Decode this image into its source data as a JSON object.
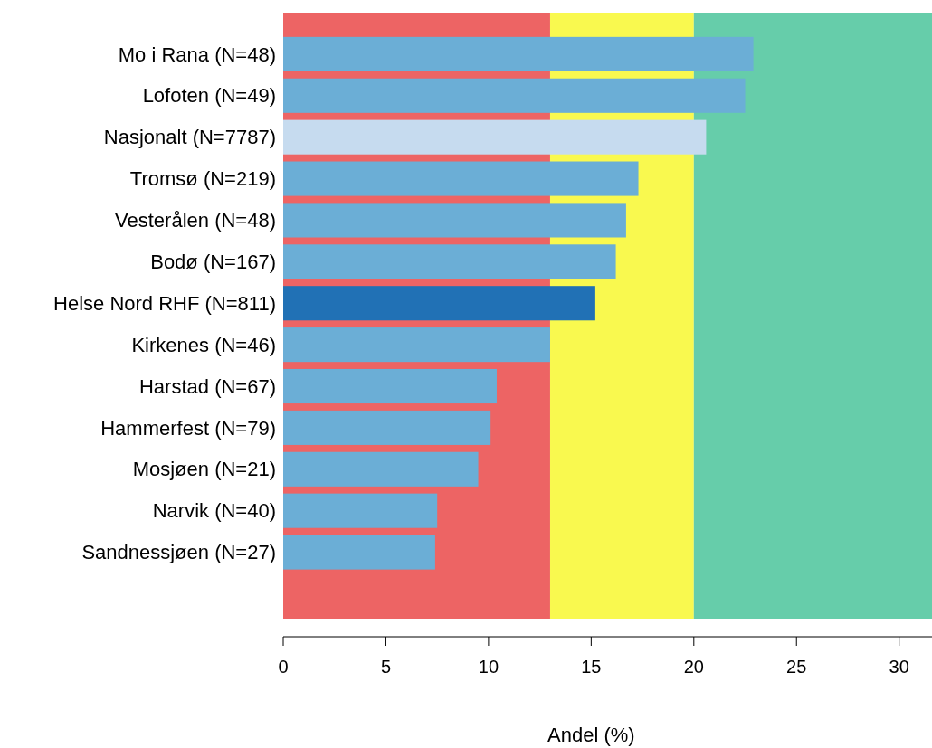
{
  "chart_data": {
    "type": "bar",
    "orientation": "horizontal",
    "xlabel": "Andel (%)",
    "categories": [
      "Mo i Rana (N=48)",
      "Lofoten (N=49)",
      "Nasjonalt (N=7787)",
      "Tromsø (N=219)",
      "Vesterålen (N=48)",
      "Bodø (N=167)",
      "Helse Nord RHF (N=811)",
      "Kirkenes (N=46)",
      "Harstad (N=67)",
      "Hammerfest (N=79)",
      "Mosjøen (N=21)",
      "Narvik (N=40)",
      "Sandnessjøen (N=27)"
    ],
    "values": [
      22.9,
      22.5,
      20.6,
      17.3,
      16.7,
      16.2,
      15.2,
      13.0,
      10.4,
      10.1,
      9.5,
      7.5,
      7.4
    ],
    "colors": [
      "#6baed6",
      "#6baed6",
      "#c6dbef",
      "#6baed6",
      "#6baed6",
      "#6baed6",
      "#2171b5",
      "#6baed6",
      "#6baed6",
      "#6baed6",
      "#6baed6",
      "#6baed6",
      "#6baed6"
    ],
    "xlim": [
      0,
      31.6
    ],
    "xticks": [
      0,
      5,
      10,
      15,
      20,
      25,
      30
    ],
    "bands": [
      {
        "axis": "x",
        "from": 0,
        "to": 13,
        "color": "#ed6464"
      },
      {
        "axis": "x",
        "from": 13,
        "to": 20,
        "color": "#f9f94f"
      },
      {
        "axis": "x",
        "from": 20,
        "to": 31.6,
        "color": "#66cdaa"
      }
    ]
  }
}
